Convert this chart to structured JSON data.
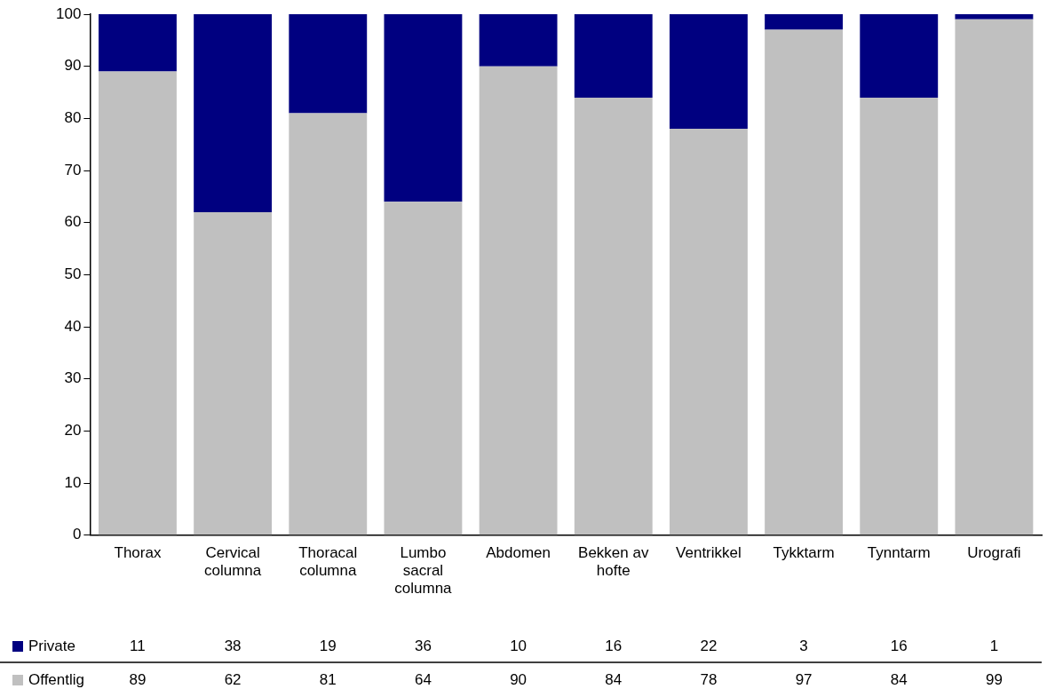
{
  "chart_data": {
    "type": "bar",
    "stacked": true,
    "categories": [
      "Thorax",
      "Cervical columna",
      "Thoracal columna",
      "Lumbo sacral columna",
      "Abdomen",
      "Bekken av hofte",
      "Ventrikkel",
      "Tykktarm",
      "Tynntarm",
      "Urografi"
    ],
    "series": [
      {
        "name": "Offentlig",
        "color": "#c0c0c0",
        "values": [
          89,
          62,
          81,
          64,
          90,
          84,
          78,
          97,
          84,
          99
        ]
      },
      {
        "name": "Private",
        "color": "#000080",
        "values": [
          11,
          38,
          19,
          36,
          10,
          16,
          22,
          3,
          16,
          1
        ]
      }
    ],
    "ylim": [
      0,
      100
    ],
    "yticks": [
      0,
      10,
      20,
      30,
      40,
      50,
      60,
      70,
      80,
      90,
      100
    ],
    "grid": false,
    "legend": "bottom",
    "data_labels": true
  }
}
